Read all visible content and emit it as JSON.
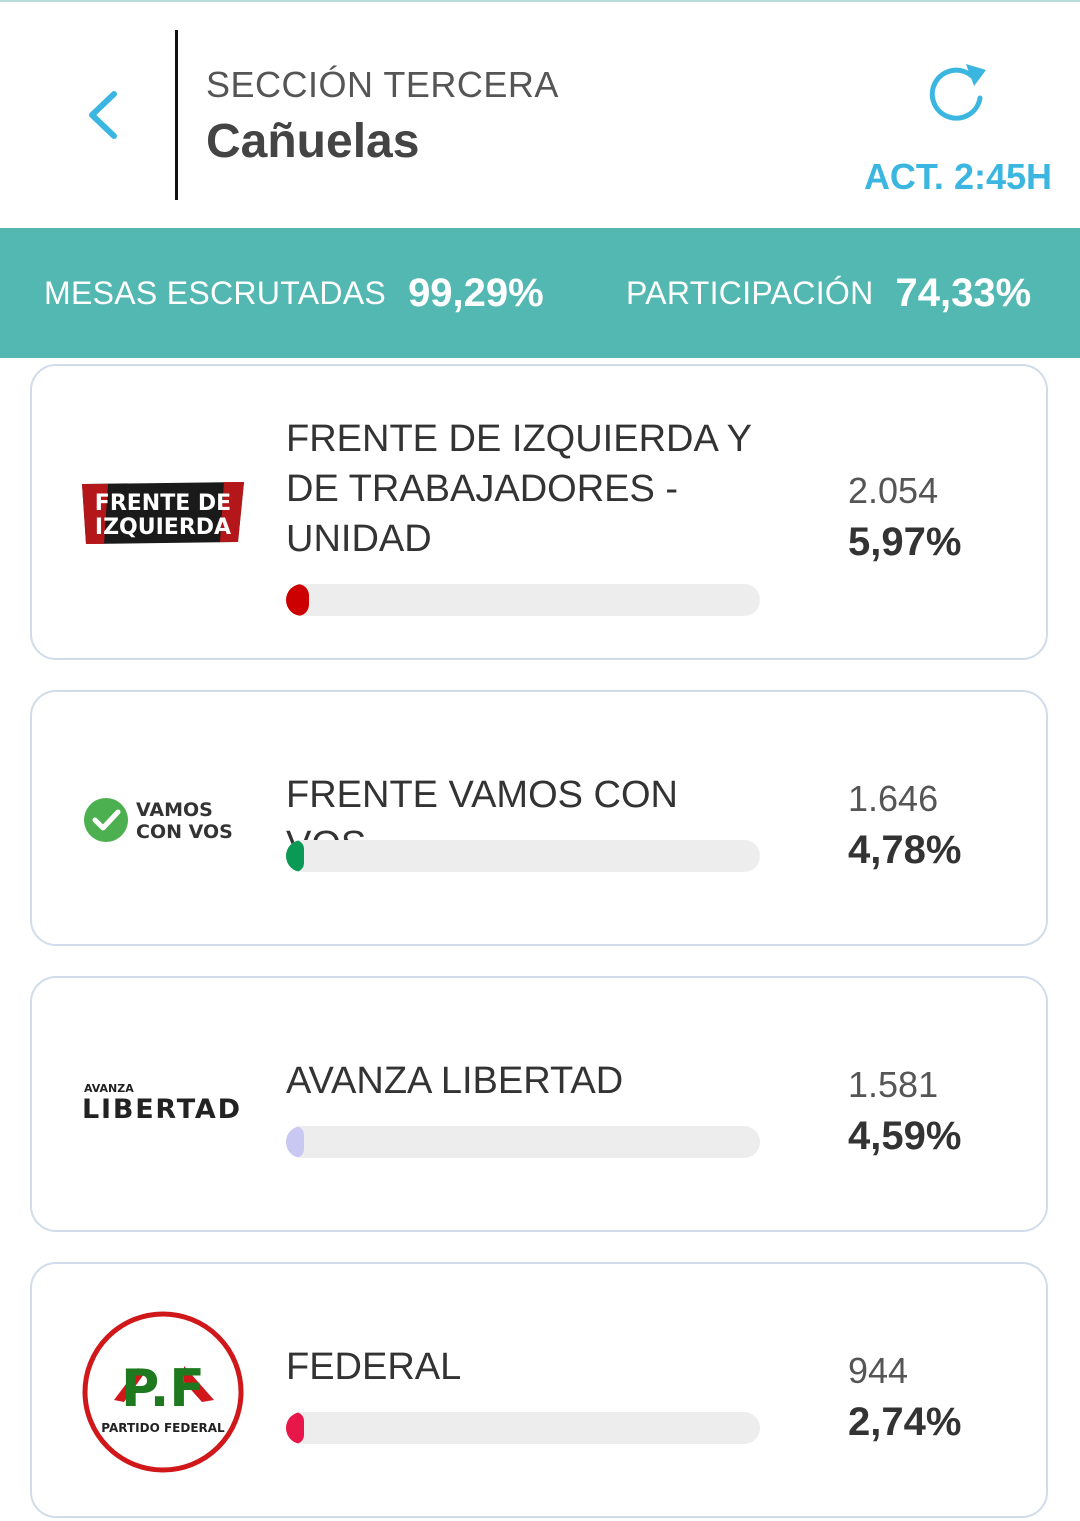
{
  "header": {
    "section": "SECCIÓN TERCERA",
    "title": "Cañuelas",
    "updated": "ACT. 2:45H",
    "back_icon": "chevron-left-icon",
    "refresh_icon": "refresh-icon"
  },
  "stats": {
    "tables_label": "MESAS ESCRUTADAS",
    "tables_value": "99,29%",
    "participation_label": "PARTICIPACIÓN",
    "participation_value": "74,33%"
  },
  "colors": {
    "accent": "#3ab6e0",
    "stats_bar": "#52b8b1"
  },
  "parties": [
    {
      "name": "FRENTE DE IZQUIERDA Y DE TRABAJADORES - UNIDAD",
      "votes": "2.054",
      "percent": "5,97%",
      "percent_value": 5.97,
      "bar_color": "#cc0000",
      "logo_text": [
        "FRENTE DE",
        "IZQUIERDA"
      ]
    },
    {
      "name": "FRENTE VAMOS CON VOS",
      "votes": "1.646",
      "percent": "4,78%",
      "percent_value": 4.78,
      "bar_color": "#0a9a55",
      "logo_text": [
        "VAMOS",
        "CON VOS"
      ]
    },
    {
      "name": "AVANZA LIBERTAD",
      "votes": "1.581",
      "percent": "4,59%",
      "percent_value": 4.59,
      "bar_color": "#c9c8f2",
      "logo_text": [
        "AVANZA",
        "LIBERTAD"
      ]
    },
    {
      "name": "FEDERAL",
      "votes": "944",
      "percent": "2,74%",
      "percent_value": 2.74,
      "bar_color": "#e8174a",
      "logo_text": [
        "P.F",
        "PARTIDO FEDERAL"
      ]
    }
  ]
}
